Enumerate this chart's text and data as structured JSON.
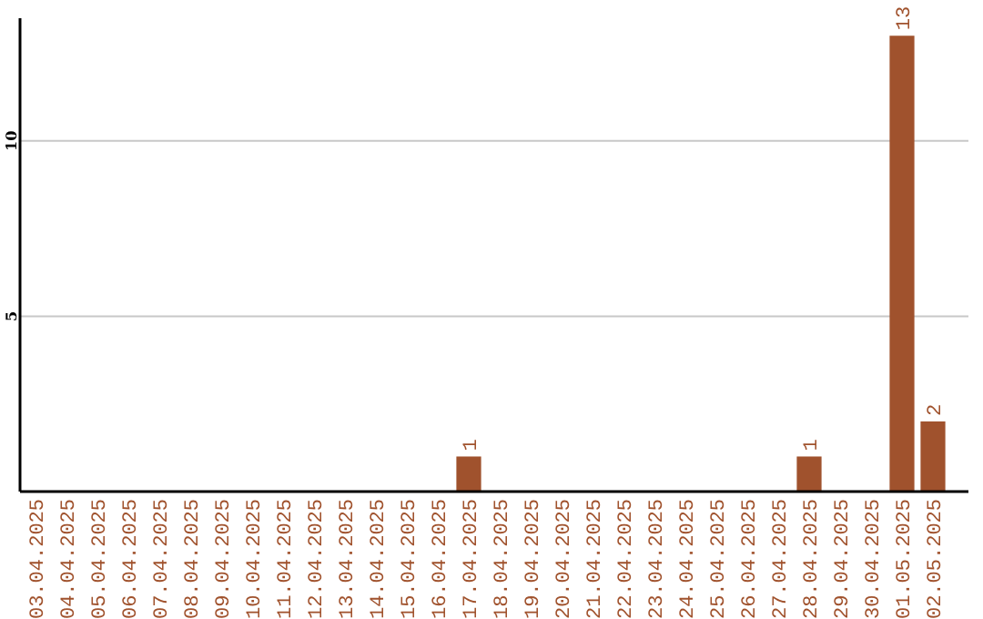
{
  "chart_data": {
    "type": "bar",
    "categories": [
      "03.04.2025",
      "04.04.2025",
      "05.04.2025",
      "06.04.2025",
      "07.04.2025",
      "08.04.2025",
      "09.04.2025",
      "10.04.2025",
      "11.04.2025",
      "12.04.2025",
      "13.04.2025",
      "14.04.2025",
      "15.04.2025",
      "16.04.2025",
      "17.04.2025",
      "18.04.2025",
      "19.04.2025",
      "20.04.2025",
      "21.04.2025",
      "22.04.2025",
      "23.04.2025",
      "24.04.2025",
      "25.04.2025",
      "26.04.2025",
      "27.04.2025",
      "28.04.2025",
      "29.04.2025",
      "30.04.2025",
      "01.05.2025",
      "02.05.2025"
    ],
    "values": [
      0,
      0,
      0,
      0,
      0,
      0,
      0,
      0,
      0,
      0,
      0,
      0,
      0,
      0,
      1,
      0,
      0,
      0,
      0,
      0,
      0,
      0,
      0,
      0,
      0,
      1,
      0,
      0,
      13,
      2
    ],
    "value_labels": [
      null,
      null,
      null,
      null,
      null,
      null,
      null,
      null,
      null,
      null,
      null,
      null,
      null,
      null,
      "1",
      null,
      null,
      null,
      null,
      null,
      null,
      null,
      null,
      null,
      null,
      "1",
      null,
      null,
      "13",
      "2"
    ],
    "color": "#a0522d",
    "ylim": [
      0,
      13.5
    ],
    "yticks": [
      5,
      10
    ],
    "grid": "y"
  }
}
